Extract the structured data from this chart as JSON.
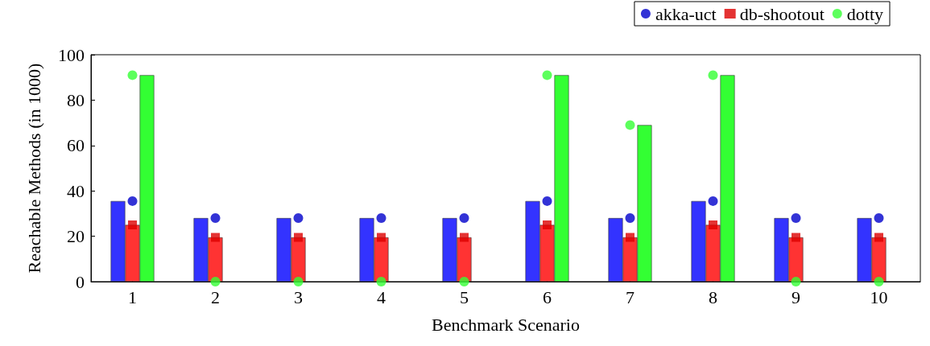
{
  "chart_data": {
    "type": "bar",
    "xlabel": "Benchmark Scenario",
    "ylabel": "Reachable Methods (in 1000)",
    "categories": [
      "1",
      "2",
      "3",
      "4",
      "5",
      "6",
      "7",
      "8",
      "9",
      "10"
    ],
    "ylim": [
      0,
      100
    ],
    "yticks": [
      0,
      20,
      40,
      60,
      80,
      100
    ],
    "grid": false,
    "legend": "top right",
    "series": [
      {
        "color": "#3333ff",
        "values": [
          35.5,
          28,
          28,
          28,
          28,
          35.5,
          28,
          35.5,
          28,
          28
        ]
      },
      {
        "color": "#ff3333",
        "values": [
          25,
          19.5,
          19.5,
          19.5,
          19.5,
          25,
          19.5,
          25,
          19.5,
          19.5
        ]
      },
      {
        "color": "#33ff33",
        "values": [
          91,
          0,
          0,
          0,
          0,
          91,
          69,
          91,
          0,
          0
        ]
      },
      {
        "type": "scatter",
        "name": "akka-uct",
        "color": "#0000cc",
        "marker": "circle",
        "values": [
          35.5,
          28,
          28,
          28,
          28,
          35.5,
          28,
          35.5,
          28,
          28
        ]
      },
      {
        "type": "scatter",
        "name": "db-shootout",
        "color": "#dd0000",
        "marker": "square",
        "values": [
          25,
          19.5,
          19.5,
          19.5,
          19.5,
          25,
          19.5,
          25,
          19.5,
          19.5
        ]
      },
      {
        "type": "scatter",
        "name": "dotty",
        "color": "#33ff33",
        "marker": "circle",
        "values": [
          91,
          0,
          0,
          0,
          0,
          91,
          69,
          91,
          0,
          0
        ]
      }
    ]
  }
}
